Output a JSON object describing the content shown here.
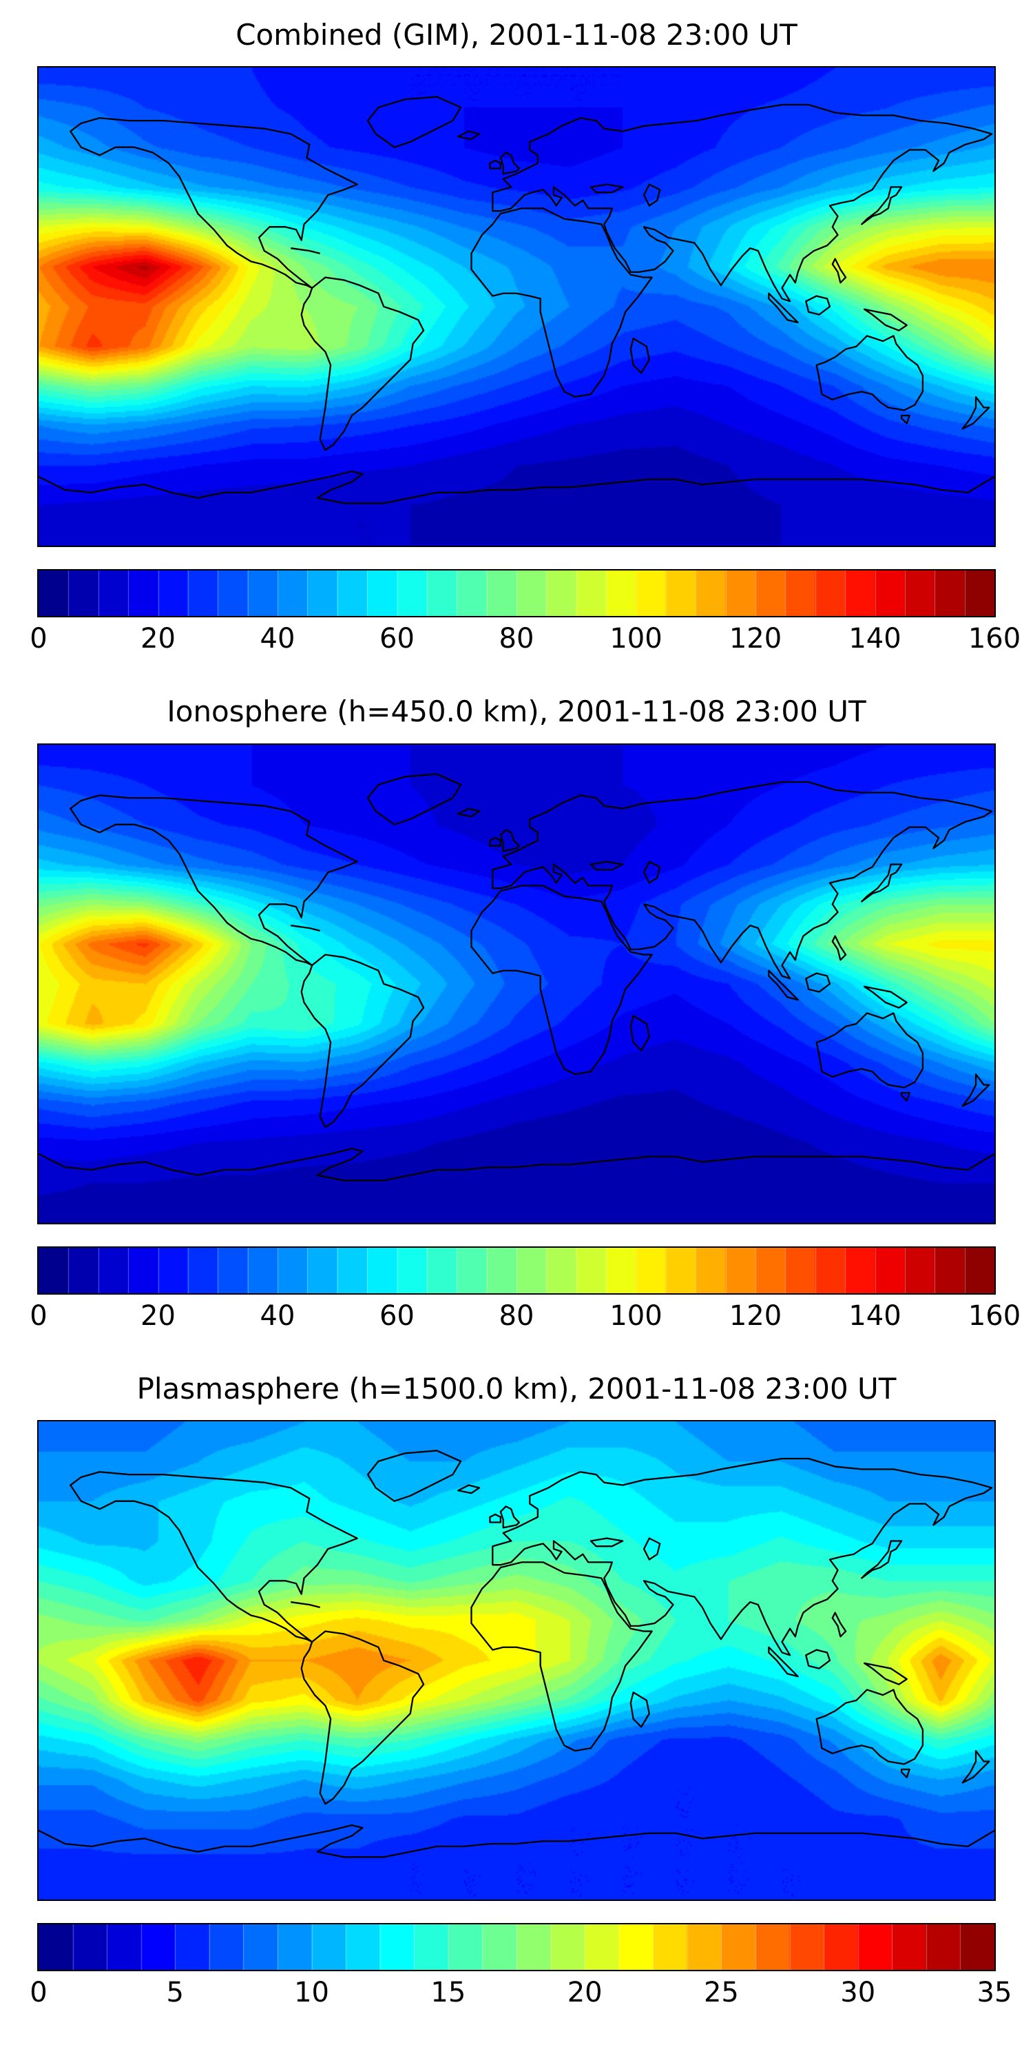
{
  "figure": {
    "background_color": "#ffffff",
    "colormap": "jet",
    "projection": "equirectangular world map with coastlines"
  },
  "chart_data": [
    {
      "type": "heatmap",
      "title": "Combined (GIM), 2001-11-08 23:00 UT",
      "colormap": "jet",
      "vmin": 0,
      "vmax": 160,
      "levels": 32,
      "colorbar_ticks": [
        0,
        20,
        40,
        60,
        80,
        100,
        120,
        140,
        160
      ],
      "legend_position": "bottom horizontal colorbar",
      "lon": [
        -180,
        -160,
        -140,
        -120,
        -100,
        -80,
        -60,
        -40,
        -20,
        0,
        20,
        40,
        60,
        80,
        100,
        120,
        140,
        160,
        180
      ],
      "lat": [
        90,
        75,
        60,
        45,
        30,
        15,
        0,
        -15,
        -30,
        -45,
        -60,
        -75,
        -90
      ],
      "values": [
        [
          25,
          25,
          25,
          25,
          25,
          22,
          20,
          20,
          20,
          20,
          20,
          20,
          20,
          22,
          22,
          25,
          25,
          25,
          25
        ],
        [
          38,
          35,
          30,
          28,
          26,
          24,
          22,
          20,
          20,
          20,
          20,
          20,
          22,
          24,
          26,
          28,
          30,
          33,
          36
        ],
        [
          48,
          42,
          36,
          32,
          30,
          26,
          24,
          22,
          20,
          18,
          18,
          20,
          22,
          26,
          30,
          34,
          38,
          42,
          46
        ],
        [
          62,
          58,
          52,
          46,
          42,
          38,
          34,
          30,
          26,
          24,
          22,
          24,
          28,
          34,
          40,
          48,
          54,
          58,
          60
        ],
        [
          95,
          100,
          98,
          85,
          72,
          60,
          52,
          46,
          40,
          36,
          32,
          34,
          40,
          50,
          62,
          78,
          88,
          94,
          95
        ],
        [
          120,
          140,
          152,
          128,
          98,
          80,
          68,
          58,
          50,
          44,
          38,
          36,
          42,
          55,
          72,
          95,
          112,
          120,
          120
        ],
        [
          112,
          126,
          128,
          108,
          92,
          85,
          80,
          68,
          56,
          46,
          40,
          34,
          32,
          36,
          46,
          62,
          82,
          98,
          108
        ],
        [
          115,
          132,
          122,
          98,
          86,
          88,
          78,
          62,
          50,
          40,
          34,
          28,
          26,
          30,
          36,
          46,
          60,
          76,
          95
        ],
        [
          72,
          80,
          76,
          62,
          55,
          56,
          50,
          40,
          34,
          29,
          24,
          20,
          18,
          20,
          25,
          30,
          40,
          50,
          60
        ],
        [
          40,
          44,
          41,
          36,
          31,
          30,
          28,
          25,
          22,
          18,
          15,
          13,
          12,
          15,
          18,
          22,
          28,
          32,
          36
        ],
        [
          25,
          25,
          22,
          20,
          18,
          18,
          16,
          15,
          12,
          10,
          9,
          8,
          8,
          10,
          12,
          15,
          18,
          20,
          22
        ],
        [
          15,
          14,
          13,
          12,
          12,
          11,
          10,
          10,
          9,
          9,
          8,
          8,
          8,
          9,
          10,
          11,
          12,
          13,
          14
        ],
        [
          10,
          10,
          10,
          10,
          10,
          10,
          10,
          10,
          10,
          10,
          10,
          10,
          10,
          10,
          10,
          10,
          10,
          10,
          10
        ]
      ]
    },
    {
      "type": "heatmap",
      "title": "Ionosphere  (h=450.0 km), 2001-11-08 23:00 UT",
      "colormap": "jet",
      "vmin": 0,
      "vmax": 160,
      "levels": 32,
      "colorbar_ticks": [
        0,
        20,
        40,
        60,
        80,
        100,
        120,
        140,
        160
      ],
      "legend_position": "bottom horizontal colorbar",
      "lon": [
        -180,
        -160,
        -140,
        -120,
        -100,
        -80,
        -60,
        -40,
        -20,
        0,
        20,
        40,
        60,
        80,
        100,
        120,
        140,
        160,
        180
      ],
      "lat": [
        90,
        75,
        60,
        45,
        30,
        15,
        0,
        -15,
        -30,
        -45,
        -60,
        -75,
        -90
      ],
      "values": [
        [
          20,
          20,
          20,
          20,
          20,
          18,
          16,
          15,
          15,
          15,
          15,
          15,
          15,
          16,
          17,
          18,
          20,
          20,
          20
        ],
        [
          30,
          28,
          25,
          22,
          20,
          18,
          16,
          15,
          14,
          14,
          14,
          15,
          16,
          18,
          20,
          22,
          25,
          27,
          29
        ],
        [
          38,
          34,
          30,
          26,
          24,
          20,
          18,
          16,
          14,
          12,
          12,
          13,
          16,
          20,
          24,
          28,
          31,
          34,
          37
        ],
        [
          52,
          48,
          42,
          37,
          33,
          28,
          25,
          21,
          18,
          15,
          13,
          15,
          19,
          25,
          31,
          38,
          44,
          48,
          50
        ],
        [
          78,
          85,
          82,
          70,
          58,
          47,
          40,
          34,
          29,
          25,
          21,
          23,
          29,
          38,
          50,
          64,
          74,
          80,
          80
        ],
        [
          100,
          122,
          132,
          108,
          80,
          63,
          52,
          44,
          37,
          31,
          26,
          25,
          30,
          42,
          58,
          78,
          95,
          102,
          102
        ],
        [
          95,
          108,
          110,
          90,
          75,
          68,
          63,
          52,
          42,
          33,
          28,
          23,
          21,
          25,
          34,
          49,
          67,
          82,
          92
        ],
        [
          98,
          112,
          103,
          80,
          68,
          70,
          61,
          47,
          37,
          29,
          24,
          19,
          17,
          20,
          26,
          35,
          48,
          62,
          80
        ],
        [
          58,
          66,
          62,
          50,
          43,
          44,
          39,
          31,
          26,
          21,
          17,
          14,
          12,
          14,
          18,
          23,
          31,
          40,
          49
        ],
        [
          32,
          36,
          33,
          28,
          24,
          23,
          21,
          19,
          16,
          13,
          11,
          9,
          9,
          11,
          13,
          17,
          21,
          25,
          29
        ],
        [
          18,
          19,
          17,
          15,
          14,
          13,
          12,
          11,
          9,
          7,
          6,
          6,
          6,
          7,
          9,
          11,
          13,
          15,
          17
        ],
        [
          11,
          10,
          10,
          9,
          9,
          8,
          8,
          7,
          7,
          6,
          6,
          6,
          6,
          7,
          7,
          8,
          9,
          10,
          10
        ],
        [
          8,
          8,
          8,
          8,
          8,
          8,
          8,
          8,
          8,
          8,
          8,
          8,
          8,
          8,
          8,
          8,
          8,
          8,
          8
        ]
      ]
    },
    {
      "type": "heatmap",
      "title": "Plasmasphere (h=1500.0 km), 2001-11-08 23:00 UT",
      "colormap": "jet",
      "vmin": 0,
      "vmax": 35,
      "levels": 28,
      "colorbar_ticks": [
        0,
        5,
        10,
        15,
        20,
        25,
        30,
        35
      ],
      "legend_position": "bottom horizontal colorbar",
      "lon": [
        -180,
        -160,
        -140,
        -120,
        -100,
        -80,
        -60,
        -40,
        -20,
        0,
        20,
        40,
        60,
        80,
        100,
        120,
        140,
        160,
        180
      ],
      "lat": [
        90,
        75,
        60,
        45,
        30,
        15,
        0,
        -15,
        -30,
        -45,
        -60,
        -75,
        -90
      ],
      "values": [
        [
          8,
          8,
          8,
          9,
          9,
          10,
          10,
          9,
          9,
          9,
          10,
          10,
          10,
          9,
          9,
          8,
          8,
          8,
          8
        ],
        [
          9,
          9,
          9,
          10,
          11,
          12,
          11,
          10,
          10,
          11,
          12,
          12,
          11,
          10,
          10,
          9,
          9,
          9,
          9
        ],
        [
          10,
          10,
          11,
          12,
          13,
          13,
          12,
          11,
          12,
          13,
          14,
          13,
          12,
          12,
          12,
          11,
          10,
          10,
          10
        ],
        [
          12,
          11,
          11,
          12,
          14,
          15,
          14,
          13,
          14,
          15,
          15,
          14,
          13,
          13,
          14,
          13,
          12,
          12,
          12
        ],
        [
          15,
          14,
          12,
          13,
          15,
          17,
          17,
          16,
          17,
          18,
          17,
          15,
          14,
          15,
          16,
          16,
          15,
          15,
          15
        ],
        [
          18,
          17,
          16,
          18,
          21,
          22,
          23,
          22,
          22,
          22,
          20,
          17,
          15,
          15,
          16,
          17,
          18,
          20,
          18
        ],
        [
          19,
          21,
          26,
          30,
          25,
          25,
          26,
          25,
          23,
          22,
          20,
          16,
          14,
          13,
          14,
          16,
          20,
          26,
          21
        ],
        [
          16,
          18,
          24,
          28,
          23,
          22,
          25,
          22,
          20,
          18,
          16,
          13,
          11,
          10,
          11,
          13,
          18,
          24,
          18
        ],
        [
          12,
          13,
          16,
          18,
          16,
          15,
          16,
          15,
          13,
          11,
          9,
          7,
          6,
          6,
          7,
          9,
          12,
          15,
          13
        ],
        [
          9,
          9,
          11,
          12,
          11,
          10,
          11,
          10,
          9,
          8,
          7,
          6,
          5,
          5,
          6,
          7,
          9,
          10,
          9
        ],
        [
          7,
          7,
          8,
          8,
          8,
          7,
          7,
          7,
          6,
          6,
          5,
          5,
          5,
          5,
          5,
          6,
          6,
          7,
          7
        ],
        [
          6,
          6,
          6,
          6,
          6,
          6,
          6,
          5,
          5,
          5,
          5,
          5,
          5,
          5,
          5,
          5,
          6,
          6,
          6
        ],
        [
          5,
          5,
          5,
          5,
          5,
          5,
          5,
          5,
          5,
          5,
          5,
          5,
          5,
          5,
          5,
          5,
          5,
          5,
          5
        ]
      ]
    }
  ]
}
